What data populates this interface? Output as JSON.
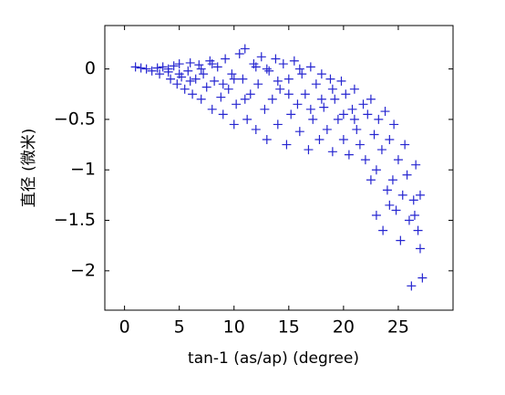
{
  "chart_data": {
    "type": "scatter",
    "xlabel": "tan-1 (as/ap) (degree)",
    "ylabel": "直径 (微米)",
    "xlim": [
      -1.8,
      30
    ],
    "ylim": [
      -2.39,
      0.43
    ],
    "xticks": [
      0,
      5,
      10,
      15,
      20,
      25
    ],
    "yticks": [
      0,
      {
        "value": -0.5,
        "label": "−0.5"
      },
      {
        "value": -1,
        "label": "−1"
      },
      {
        "value": -1.5,
        "label": "−1.5"
      },
      {
        "value": -2,
        "label": "−2"
      }
    ],
    "grid": false,
    "series": [
      {
        "color": "#2525d0",
        "x": [
          1,
          1.5,
          2,
          2.5,
          3,
          3.2,
          3.5,
          4,
          4.2,
          4.5,
          4.8,
          5,
          5.2,
          5.5,
          5.8,
          6,
          6.2,
          6.5,
          6.8,
          7,
          7.2,
          7.5,
          7.8,
          8,
          8.2,
          8.5,
          8.8,
          9,
          9.2,
          9.5,
          9.8,
          10,
          10.2,
          10.5,
          10.8,
          11,
          11.2,
          11.5,
          11.8,
          12,
          12.2,
          12.5,
          12.8,
          13,
          13.2,
          13.5,
          13.8,
          14,
          14.2,
          14.5,
          14.8,
          15,
          15.2,
          15.5,
          15.8,
          16,
          16.2,
          16.5,
          16.8,
          17,
          17.2,
          17.5,
          17.8,
          18,
          18.2,
          18.5,
          18.8,
          19,
          19.2,
          19.5,
          19.8,
          20,
          20.2,
          20.5,
          20.8,
          21,
          21.2,
          21.5,
          21.8,
          22,
          22.2,
          22.5,
          22.8,
          23,
          23.2,
          23.5,
          23.6,
          23.8,
          24,
          24.2,
          24.5,
          24.6,
          24.8,
          25,
          25.2,
          25.4,
          25.6,
          25.8,
          26,
          26.2,
          26.4,
          26.6,
          26.8,
          27,
          27.2,
          27,
          26.5,
          24.2,
          23,
          22.5,
          21,
          20,
          19,
          18,
          17,
          16,
          15,
          14,
          13,
          12,
          11,
          10,
          9,
          8,
          7,
          6,
          5,
          4
        ],
        "values": [
          0.02,
          0.01,
          0,
          -0.02,
          0.01,
          -0.05,
          0.02,
          -0.03,
          -0.1,
          0.03,
          -0.15,
          0.05,
          -0.08,
          -0.2,
          -0.02,
          0.06,
          -0.25,
          -0.1,
          0.04,
          -0.3,
          -0.05,
          -0.18,
          0.08,
          -0.4,
          -0.12,
          0.02,
          -0.28,
          -0.45,
          0.1,
          -0.2,
          -0.05,
          -0.55,
          -0.35,
          0.15,
          -0.1,
          0.2,
          -0.5,
          -0.25,
          0.05,
          -0.6,
          -0.15,
          0.12,
          -0.4,
          -0.7,
          -0.02,
          -0.3,
          0.1,
          -0.55,
          -0.2,
          0.05,
          -0.75,
          -0.1,
          -0.45,
          0.08,
          -0.35,
          -0.62,
          -0.05,
          -0.25,
          -0.8,
          0.02,
          -0.5,
          -0.15,
          -0.7,
          -0.05,
          -0.38,
          -0.6,
          -0.1,
          -0.82,
          -0.3,
          -0.5,
          -0.12,
          -0.7,
          -0.25,
          -0.85,
          -0.4,
          -0.2,
          -0.6,
          -0.75,
          -0.35,
          -0.9,
          -0.45,
          -0.3,
          -0.65,
          -1.0,
          -0.5,
          -0.8,
          -1.6,
          -0.42,
          -1.2,
          -0.7,
          -1.1,
          -0.55,
          -1.4,
          -0.9,
          -1.7,
          -1.25,
          -0.75,
          -1.05,
          -1.5,
          -2.15,
          -1.3,
          -0.95,
          -1.6,
          -1.78,
          -2.07,
          -1.25,
          -1.45,
          -1.35,
          -1.45,
          -1.1,
          -0.5,
          -0.45,
          -0.2,
          -0.3,
          -0.4,
          0.0,
          -0.25,
          -0.12,
          0.0,
          0.02,
          -0.3,
          -0.1,
          -0.15,
          0.05,
          0.0,
          -0.12,
          -0.05,
          0.0
        ]
      }
    ]
  }
}
